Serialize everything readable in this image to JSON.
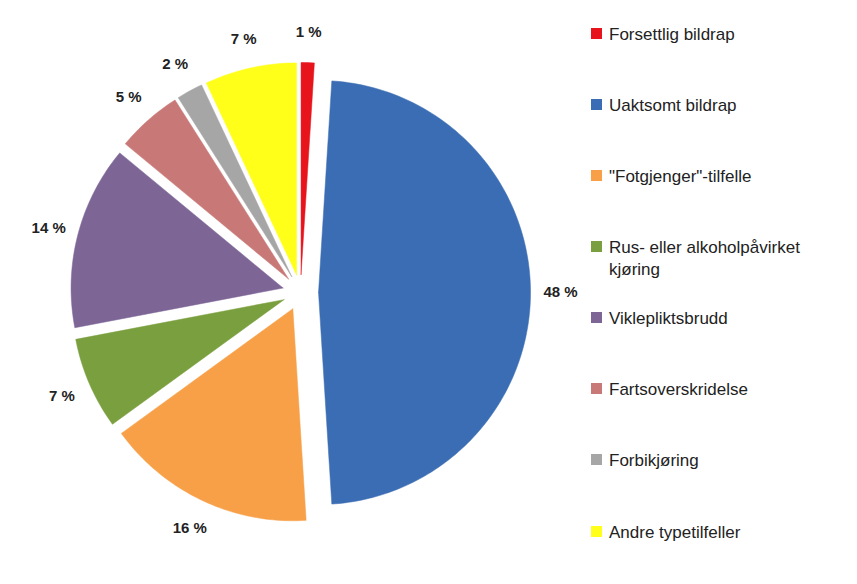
{
  "chart_data": {
    "type": "pie",
    "categories": [
      "Forsettlig bildrap",
      "Uaktsomt bildrap",
      "\"Fotgjenger\"-tilfelle",
      "Rus- eller alkoholpåvirket kjøring",
      "Vikleplikts­brudd",
      "Fartsoverskridelse",
      "Forbikjøring",
      "Andre typetilfeller"
    ],
    "values": [
      1,
      48,
      16,
      7,
      14,
      5,
      2,
      7
    ],
    "value_labels": [
      "1 %",
      "48 %",
      "16 %",
      "7 %",
      "14 %",
      "5 %",
      "2 %",
      "7 %"
    ],
    "colors": [
      "#e8141c",
      "#3a6db3",
      "#f7a048",
      "#7a9f3e",
      "#7d6596",
      "#c87977",
      "#a6a6a6",
      "#ffff1a"
    ],
    "data_labels": true,
    "legend": "right"
  }
}
